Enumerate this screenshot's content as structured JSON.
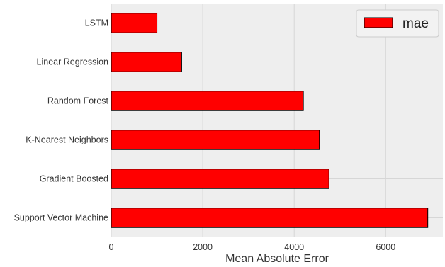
{
  "chart_data": {
    "type": "bar",
    "orientation": "horizontal",
    "categories": [
      "LSTM",
      "Linear Regression",
      "Random Forest",
      "K-Nearest Neighbors",
      "Gradient Boosted",
      "Support Vector Machine"
    ],
    "series": [
      {
        "name": "mae",
        "values": [
          1000,
          1540,
          4200,
          4550,
          4760,
          6920
        ]
      }
    ],
    "xlabel": "Mean Absolute Error",
    "ylabel": "",
    "xlim": [
      0,
      7250
    ],
    "xticks": [
      "0",
      "2000",
      "4000",
      "6000"
    ],
    "grid": true,
    "legend": "top-right",
    "bar_color": "#ff0000",
    "background_color": "#eeeeee"
  }
}
